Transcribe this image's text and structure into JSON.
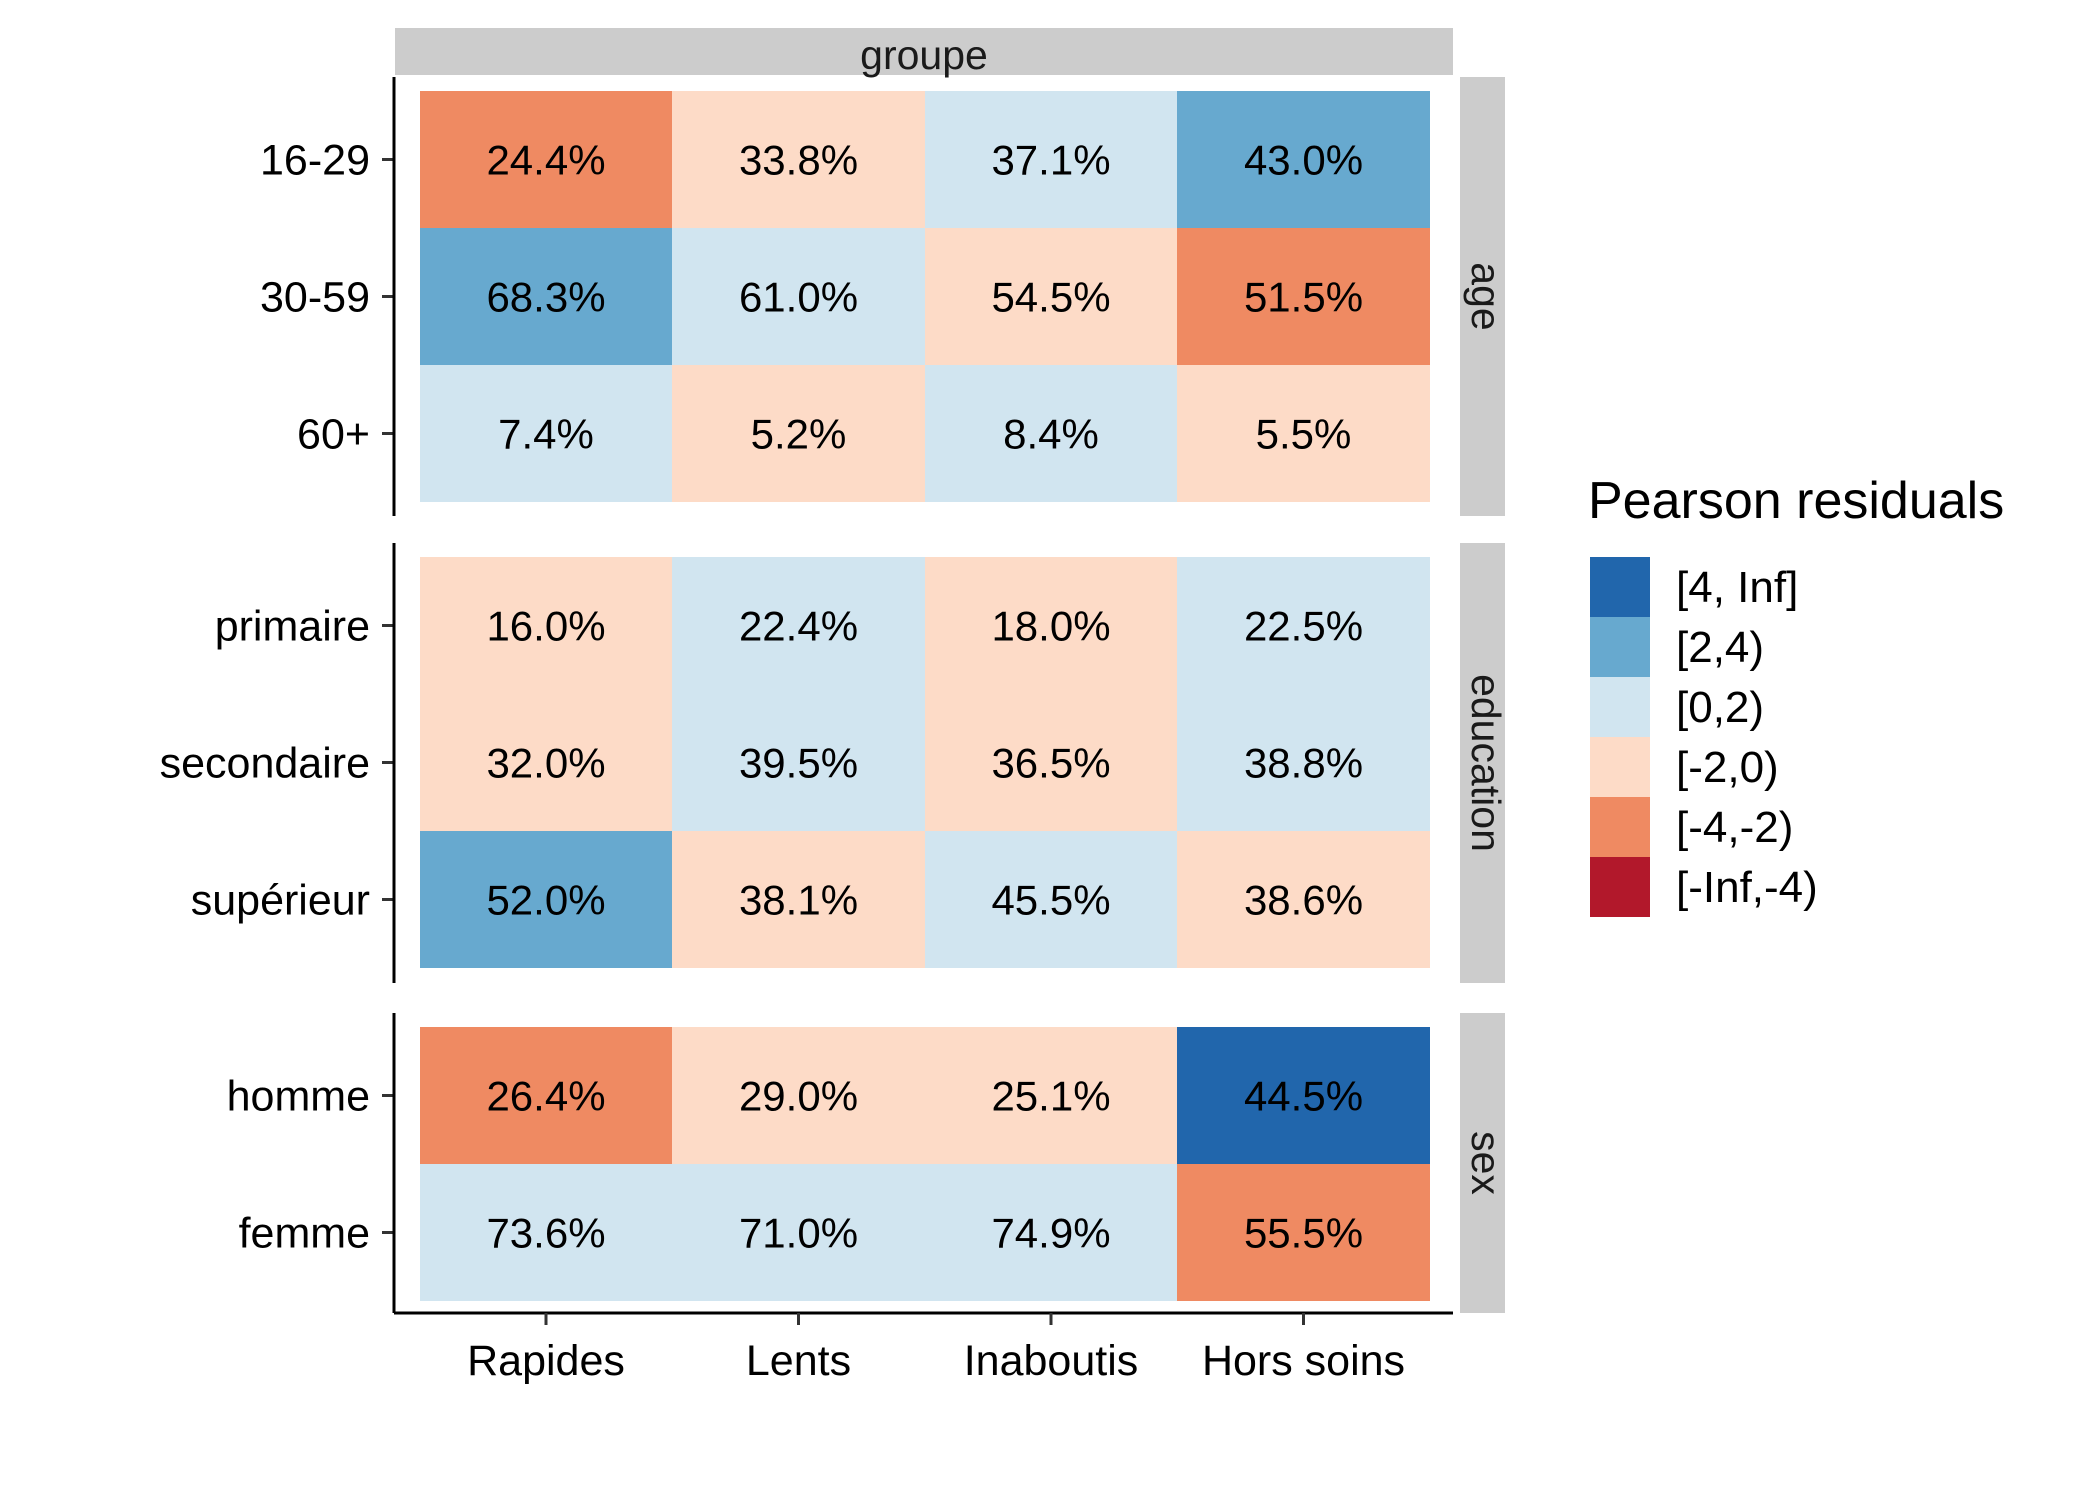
{
  "chart_data": {
    "type": "heatmap",
    "column_strip": "groupe",
    "columns": [
      "Rapides",
      "Lents",
      "Inaboutis",
      "Hors soins"
    ],
    "panels": [
      {
        "strip": "age",
        "rows": [
          {
            "label": "16-29",
            "values": [
              "24.4%",
              "33.8%",
              "37.1%",
              "43.0%"
            ],
            "bins": [
              "[-4,-2)",
              "[-2,0)",
              "[0,2)",
              "[2,4)"
            ]
          },
          {
            "label": "30-59",
            "values": [
              "68.3%",
              "61.0%",
              "54.5%",
              "51.5%"
            ],
            "bins": [
              "[2,4)",
              "[0,2)",
              "[-2,0)",
              "[-4,-2)"
            ]
          },
          {
            "label": "60+",
            "values": [
              "7.4%",
              "5.2%",
              "8.4%",
              "5.5%"
            ],
            "bins": [
              "[0,2)",
              "[-2,0)",
              "[0,2)",
              "[-2,0)"
            ]
          }
        ]
      },
      {
        "strip": "education",
        "rows": [
          {
            "label": "primaire",
            "values": [
              "16.0%",
              "22.4%",
              "18.0%",
              "22.5%"
            ],
            "bins": [
              "[-2,0)",
              "[0,2)",
              "[-2,0)",
              "[0,2)"
            ]
          },
          {
            "label": "secondaire",
            "values": [
              "32.0%",
              "39.5%",
              "36.5%",
              "38.8%"
            ],
            "bins": [
              "[-2,0)",
              "[0,2)",
              "[-2,0)",
              "[0,2)"
            ]
          },
          {
            "label": "supérieur",
            "values": [
              "52.0%",
              "38.1%",
              "45.5%",
              "38.6%"
            ],
            "bins": [
              "[2,4)",
              "[-2,0)",
              "[0,2)",
              "[-2,0)"
            ]
          }
        ]
      },
      {
        "strip": "sex",
        "rows": [
          {
            "label": "homme",
            "values": [
              "26.4%",
              "29.0%",
              "25.1%",
              "44.5%"
            ],
            "bins": [
              "[-4,-2)",
              "[-2,0)",
              "[-2,0)",
              "[4, Inf]"
            ]
          },
          {
            "label": "femme",
            "values": [
              "73.6%",
              "71.0%",
              "74.9%",
              "55.5%"
            ],
            "bins": [
              "[0,2)",
              "[0,2)",
              "[0,2)",
              "[-4,-2)"
            ]
          }
        ]
      }
    ],
    "legend": {
      "title": "Pearson residuals",
      "placement": "right",
      "items": [
        {
          "label": "[4, Inf]",
          "color": "#2166ac"
        },
        {
          "label": "[2,4)",
          "color": "#67a9cf"
        },
        {
          "label": "[0,2)",
          "color": "#d1e5f0"
        },
        {
          "label": "[-2,0)",
          "color": "#fddbc7"
        },
        {
          "label": "[-4,-2)",
          "color": "#ef8a62"
        },
        {
          "label": "[-Inf,-4)",
          "color": "#b2182b"
        }
      ]
    },
    "strip_color": "#cccccc"
  }
}
